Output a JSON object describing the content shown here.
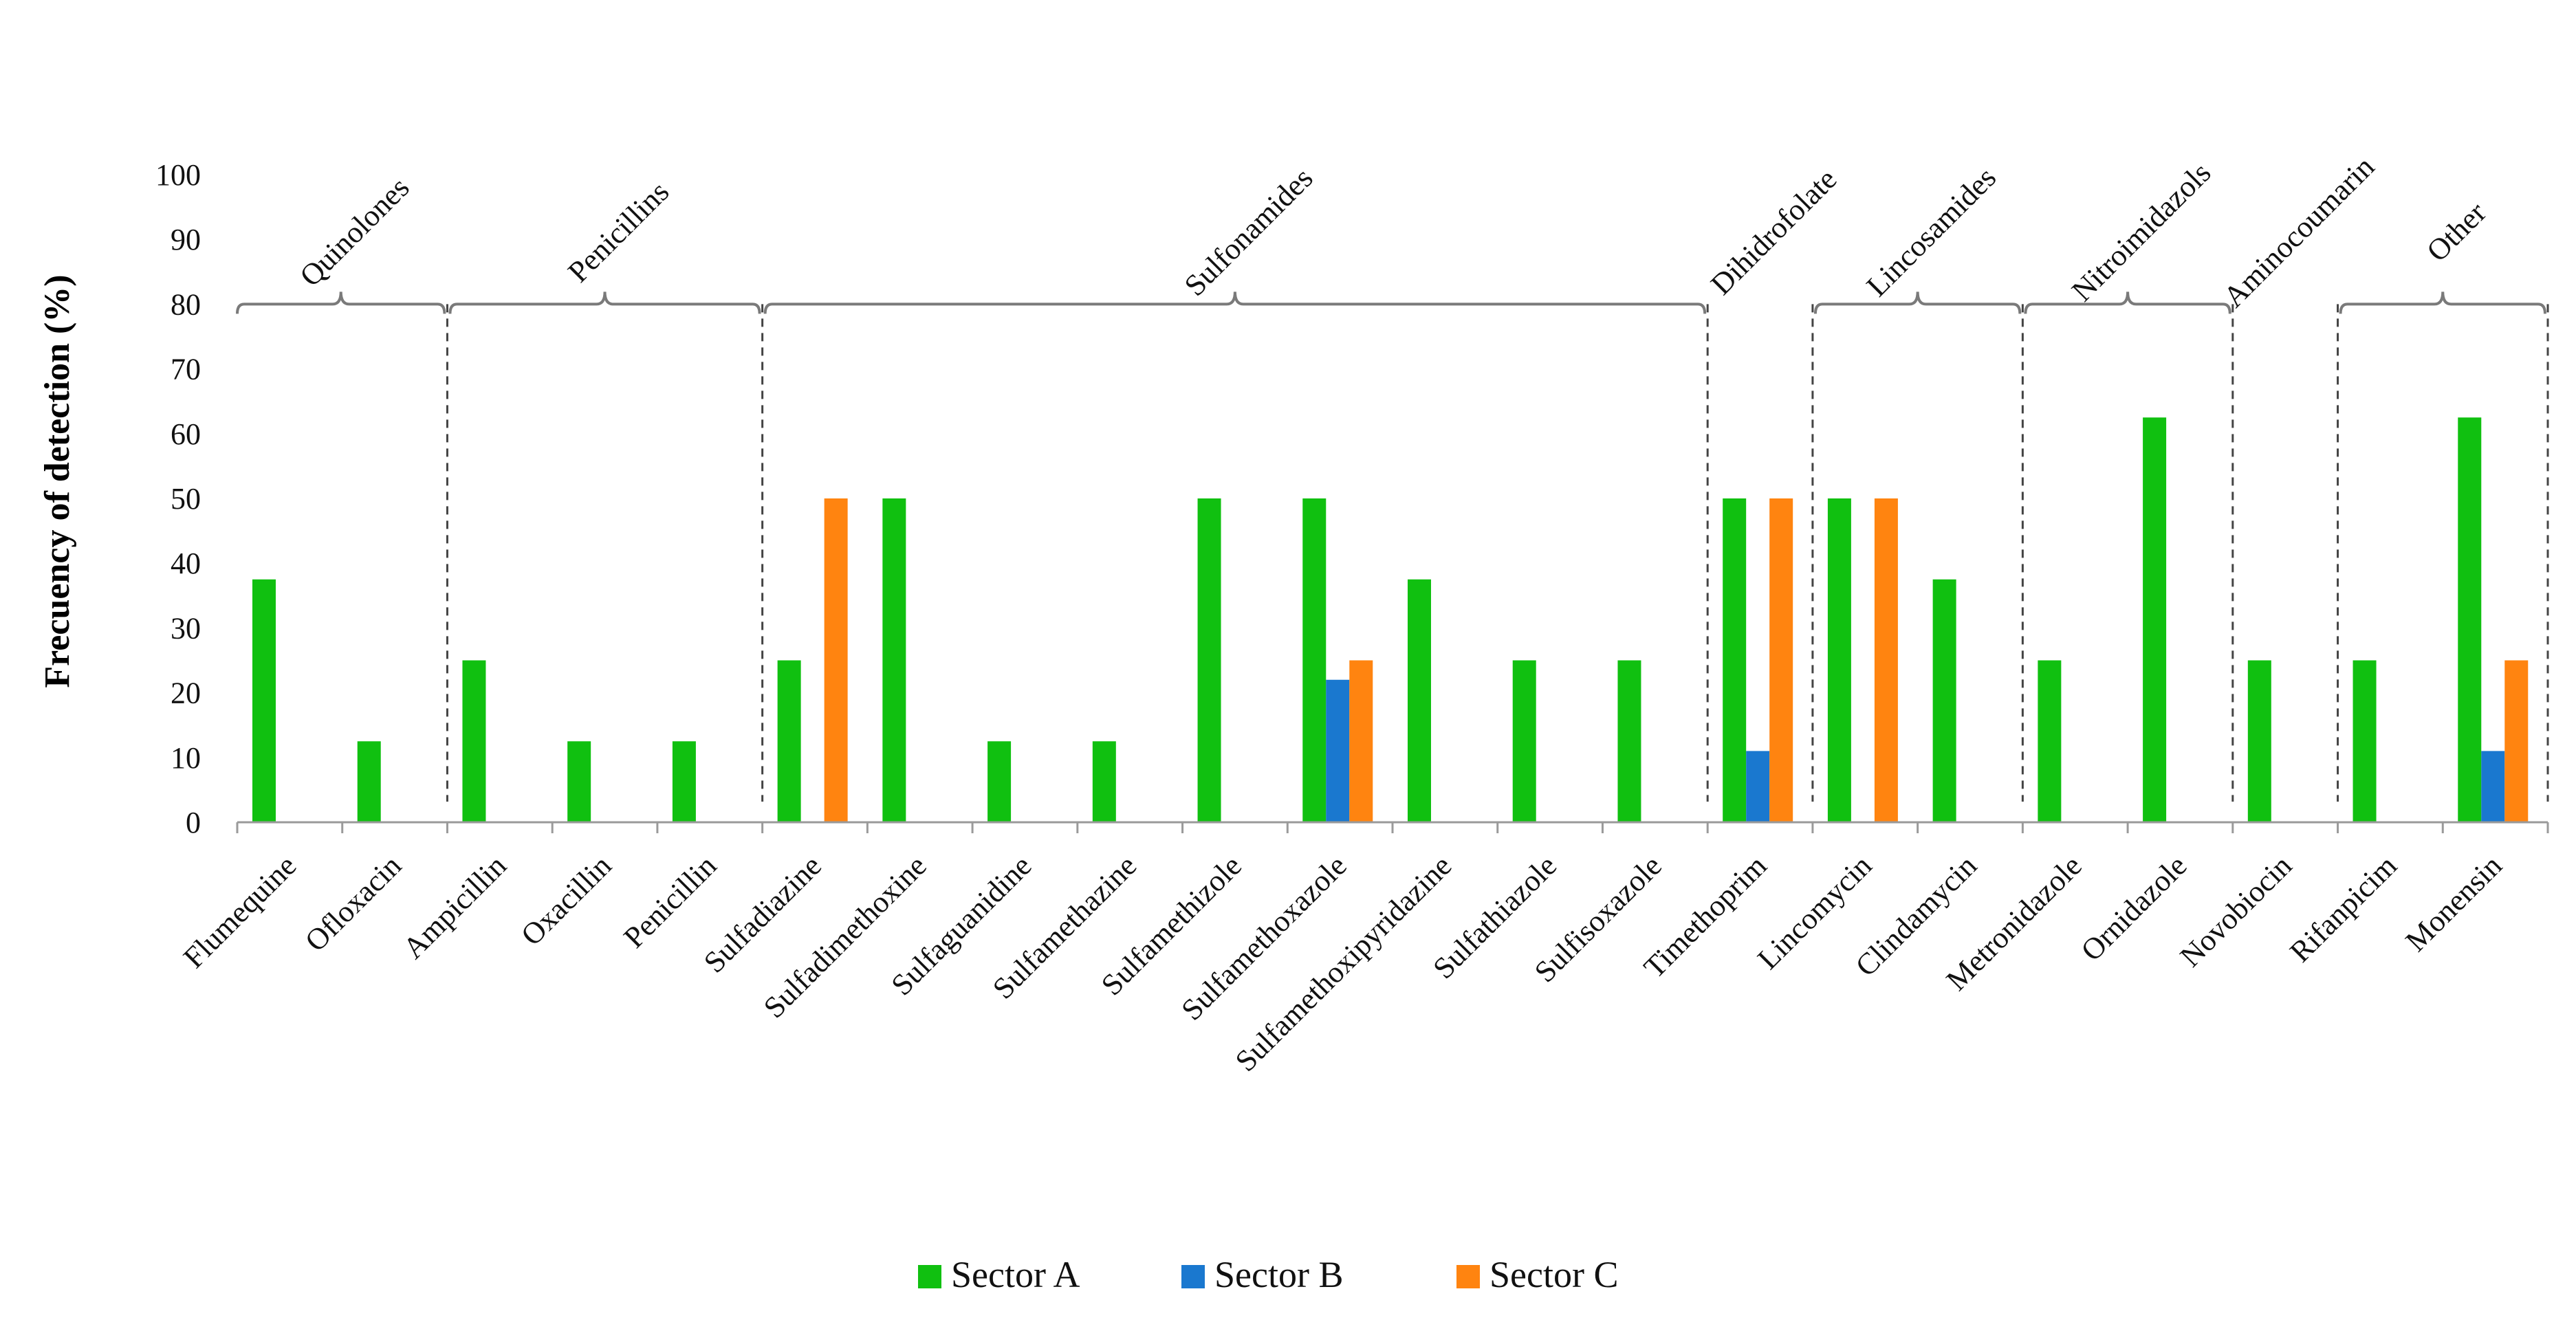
{
  "chart_data": {
    "type": "bar",
    "title": "",
    "xlabel": "",
    "ylabel": "Frecuency of detection (%)",
    "ylim": [
      0,
      100
    ],
    "yticks": [
      0,
      10,
      20,
      30,
      40,
      50,
      60,
      70,
      80,
      90,
      100
    ],
    "grid": false,
    "legend_position": "bottom",
    "categories": [
      "Flumequine",
      "Ofloxacin",
      "Ampicillin",
      "Oxacillin",
      "Penicillin",
      "Sulfadiazine",
      "Sulfadimethoxine",
      "Sulfaguanidine",
      "Sulfamethazine",
      "Sulfamethizole",
      "Sulfamethoxazole",
      "Sulfamethoxipyridazine",
      "Sulfathiazole",
      "Sulfisoxazole",
      "Timethoprim",
      "Lincomycin",
      "Clindamycin",
      "Metronidazole",
      "Ornidazole",
      "Novobiocin",
      "Rifanpicim",
      "Monensin"
    ],
    "series": [
      {
        "name": "Sector A",
        "color": "#10c010",
        "values": [
          37.5,
          12.5,
          25,
          12.5,
          12.5,
          25,
          50,
          12.5,
          12.5,
          50,
          50,
          37.5,
          25,
          25,
          50,
          50,
          37.5,
          25,
          62.5,
          25,
          25,
          62.5
        ]
      },
      {
        "name": "Sector B",
        "color": "#1a78cf",
        "values": [
          0,
          0,
          0,
          0,
          0,
          0,
          0,
          0,
          0,
          0,
          22,
          0,
          0,
          0,
          11,
          0,
          0,
          0,
          0,
          0,
          0,
          11
        ]
      },
      {
        "name": "Sector C",
        "color": "#ff8410",
        "values": [
          0,
          0,
          0,
          0,
          0,
          50,
          0,
          0,
          0,
          0,
          25,
          0,
          0,
          0,
          50,
          50,
          0,
          0,
          0,
          0,
          0,
          25
        ]
      }
    ],
    "groups": [
      {
        "label": "Quinolones",
        "start": 0,
        "end": 1
      },
      {
        "label": "Penicillins",
        "start": 2,
        "end": 4
      },
      {
        "label": "Sulfonamides",
        "start": 5,
        "end": 13
      },
      {
        "label": "Dihidrofolate",
        "start": 14,
        "end": 14
      },
      {
        "label": "Lincosamides",
        "start": 15,
        "end": 16
      },
      {
        "label": "Nitroimidazols",
        "start": 17,
        "end": 18
      },
      {
        "label": "Aminocoumarin",
        "start": 19,
        "end": 19
      },
      {
        "label": "Other",
        "start": 20,
        "end": 21
      }
    ]
  }
}
